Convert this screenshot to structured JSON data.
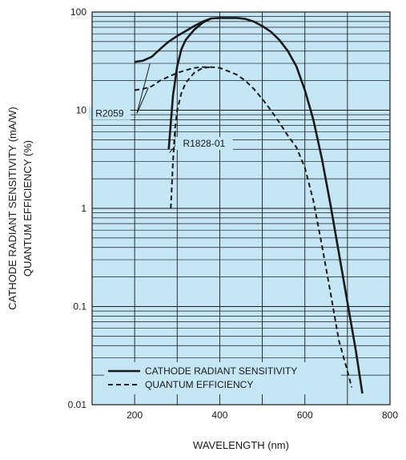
{
  "chart_data": {
    "type": "line",
    "xlabel": "WAVELENGTH (nm)",
    "ylabel_lines": [
      "CATHODE RADIANT SENSITIVITY (mA/W)",
      "QUANTUM EFFICIENCY (%)"
    ],
    "xlim": [
      100,
      800
    ],
    "ylim": [
      0.01,
      100
    ],
    "yscale": "log",
    "grid": true,
    "plot_background": "#c5e6f5",
    "x_ticks": [
      "200",
      "400",
      "600",
      "800"
    ],
    "y_ticks": [
      "0.01",
      "0.1",
      "1",
      "10",
      "100"
    ],
    "legend_position": "bottom-left",
    "series": [
      {
        "name": "CATHODE RADIANT SENSITIVITY",
        "style": "solid",
        "segments": [
          {
            "x": [
              200,
              220,
              240,
              260,
              280,
              300,
              320,
              340,
              360,
              380,
              400,
              420,
              440,
              460,
              480,
              500,
              520,
              540,
              560,
              580,
              600,
              620,
              640,
              660,
              680,
              700,
              720,
              735
            ],
            "y": [
              31,
              32,
              35,
              42,
              50,
              57,
              64,
              72,
              80,
              86,
              87,
              87,
              87,
              85,
              80,
              72,
              63,
              52,
              40,
              28,
              16,
              8,
              3.2,
              1.1,
              0.35,
              0.11,
              0.035,
              0.013
            ]
          },
          {
            "x": [
              280,
              290,
              300,
              310,
              320,
              340,
              360,
              380
            ],
            "y": [
              4,
              14,
              28,
              42,
              52,
              66,
              78,
              86
            ]
          }
        ]
      },
      {
        "name": "QUANTUM EFFICIENCY",
        "style": "dashed",
        "segments": [
          {
            "x": [
              200,
              220,
              240,
              260,
              280,
              300,
              320,
              340,
              360,
              380,
              400,
              420,
              440,
              460,
              480,
              500,
              520,
              540,
              560,
              580,
              600,
              620,
              640,
              660,
              680,
              700,
              710
            ],
            "y": [
              16,
              16.5,
              17.5,
              20,
              22,
              24,
              25.5,
              27,
              27.5,
              27.5,
              27,
              25,
              23,
              20,
              16.5,
              13,
              10,
              7.5,
              5.5,
              4.2,
              2.6,
              1.2,
              0.42,
              0.14,
              0.045,
              0.022,
              0.015
            ]
          },
          {
            "x": [
              285,
              290,
              295,
              300,
              310,
              320,
              340,
              360,
              380
            ],
            "y": [
              1,
              3,
              6.5,
              10,
              15,
              19,
              24,
              27,
              27.5
            ]
          }
        ]
      }
    ],
    "annotations": [
      {
        "text": "R2059",
        "at": [
          145,
          10
        ]
      },
      {
        "text": "R1828-01",
        "at": [
          365,
          4.5
        ]
      }
    ]
  }
}
